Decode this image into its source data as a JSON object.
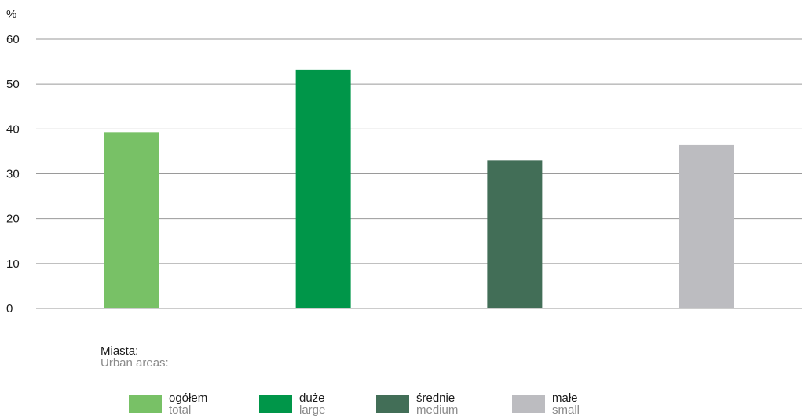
{
  "chart_data": {
    "type": "bar",
    "categories": [
      "ogółem",
      "duże",
      "średnie",
      "małe"
    ],
    "values": [
      39.3,
      53.2,
      33.0,
      36.4
    ],
    "colors": [
      "#78c166",
      "#009649",
      "#426e57",
      "#bcbcc0"
    ],
    "ylabel": "%",
    "ylim": [
      0,
      60
    ],
    "yticks": [
      0,
      10,
      20,
      30,
      40,
      50,
      60
    ],
    "grid": true,
    "gridColor": "#9a9a9a",
    "legend": {
      "title": "Miasta:",
      "title_en": "Urban areas:",
      "placement": "bottom",
      "items": [
        {
          "label": "ogółem",
          "label_en": "total",
          "color": "#78c166"
        },
        {
          "label": "duże",
          "label_en": "large",
          "color": "#009649"
        },
        {
          "label": "średnie",
          "label_en": "medium",
          "color": "#426e57"
        },
        {
          "label": "małe",
          "label_en": "small",
          "color": "#bcbcc0"
        }
      ]
    }
  }
}
